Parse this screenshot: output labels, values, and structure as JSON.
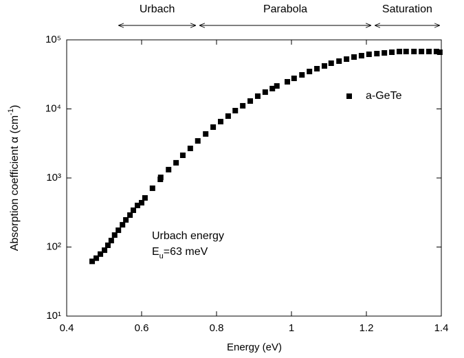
{
  "chart_data": {
    "type": "scatter",
    "x_label": "Energy (eV)",
    "y_label_parts": [
      "Absorption coefficient α (cm",
      "-1",
      ")"
    ],
    "annotation": "Urbach energy",
    "annotation_2_parts": [
      "E",
      "u",
      "=63 meV"
    ],
    "regions": [
      {
        "label": "Urbach",
        "range": [
          0.538,
          0.745
        ]
      },
      {
        "label": "Parabola",
        "range": [
          0.754,
          1.213
        ]
      },
      {
        "label": "Saturation",
        "range": [
          1.222,
          1.396
        ]
      }
    ],
    "log_y": true,
    "legend": "right",
    "xlim": [
      0.4,
      1.4
    ],
    "xticks": [
      0.4,
      0.6,
      0.8,
      1.0,
      1.2,
      1.4
    ],
    "ylim": [
      10,
      100000
    ],
    "yticks": [
      {
        "value": 10,
        "label": "10¹"
      },
      {
        "value": 100,
        "label": "10²"
      },
      {
        "value": 1000,
        "label": "10³"
      },
      {
        "value": 10000,
        "label": "10⁴"
      },
      {
        "value": 100000,
        "label": "10⁵"
      }
    ],
    "series": [
      {
        "name": "a-GeTe",
        "color": "#000000",
        "x": [
          0.468,
          0.479,
          0.49,
          0.501,
          0.51,
          0.519,
          0.528,
          0.538,
          0.549,
          0.558,
          0.569,
          0.578,
          0.589,
          0.6,
          0.609,
          0.629,
          0.65,
          0.651,
          0.672,
          0.692,
          0.71,
          0.73,
          0.75,
          0.771,
          0.791,
          0.811,
          0.831,
          0.85,
          0.87,
          0.89,
          0.91,
          0.93,
          0.949,
          0.961,
          0.989,
          1.007,
          1.028,
          1.048,
          1.068,
          1.088,
          1.106,
          1.127,
          1.147,
          1.167,
          1.187,
          1.207,
          1.228,
          1.248,
          1.268,
          1.288,
          1.306,
          1.327,
          1.347,
          1.367,
          1.387,
          1.396
        ],
        "values": [
          62,
          69,
          79,
          90,
          106,
          124,
          149,
          175,
          210,
          247,
          290,
          341,
          400,
          438,
          514,
          710,
          955,
          1020,
          1320,
          1660,
          2130,
          2680,
          3440,
          4340,
          5450,
          6550,
          7870,
          9440,
          11100,
          13000,
          15300,
          17500,
          19700,
          21500,
          24700,
          27700,
          31100,
          34800,
          38200,
          41900,
          45900,
          49200,
          52600,
          56400,
          59000,
          61800,
          63200,
          64700,
          66200,
          67800,
          67800,
          67800,
          67800,
          67800,
          67800,
          66200
        ]
      }
    ]
  }
}
